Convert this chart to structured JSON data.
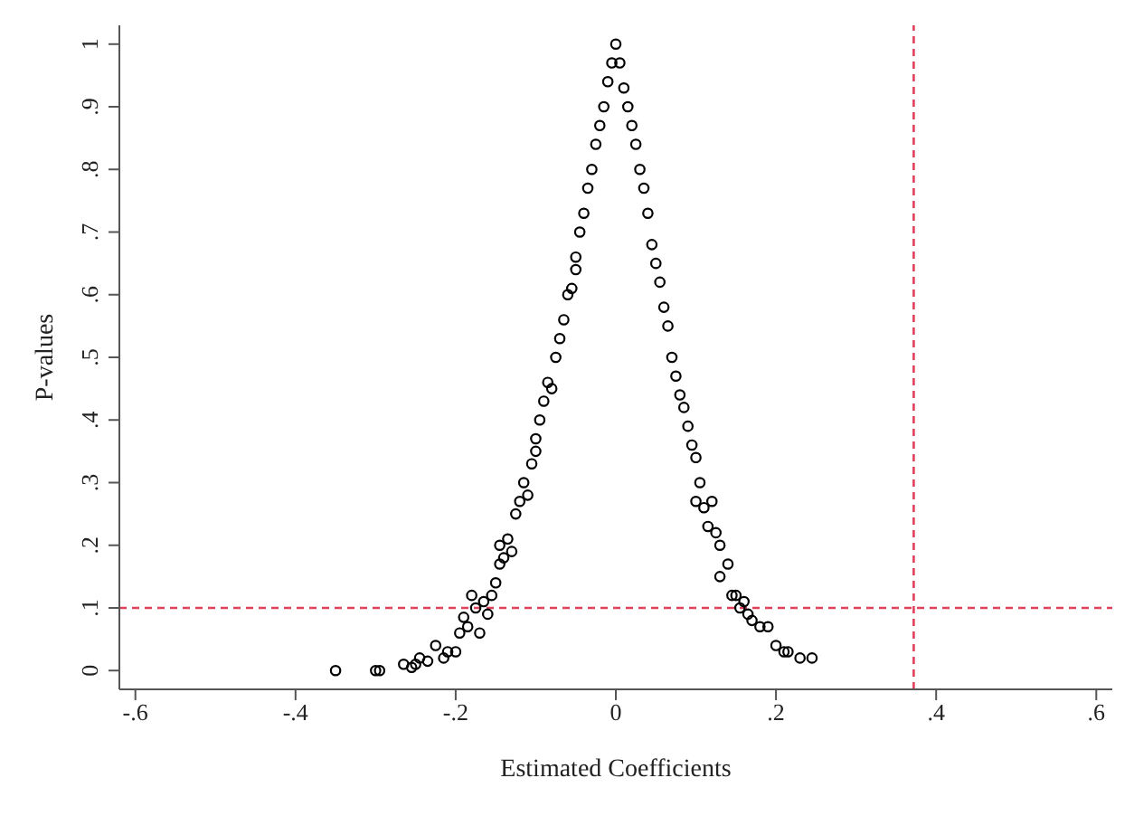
{
  "chart_data": {
    "type": "scatter",
    "xlabel": "Estimated Coefficients",
    "ylabel": "P-values",
    "marker": "circle",
    "grid": false,
    "legend": false,
    "xlim": [
      -0.62,
      0.62
    ],
    "ylim": [
      -0.03,
      1.03
    ],
    "xticks": [
      {
        "value": -0.6,
        "label": "-.6"
      },
      {
        "value": -0.4,
        "label": "-.4"
      },
      {
        "value": -0.2,
        "label": "-.2"
      },
      0,
      {
        "value": 0.2,
        "label": ".2"
      },
      {
        "value": 0.4,
        "label": ".4"
      },
      {
        "value": 0.6,
        "label": ".6"
      }
    ],
    "yticks": [
      0,
      {
        "value": 0.1,
        "label": ".1"
      },
      {
        "value": 0.2,
        "label": ".2"
      },
      {
        "value": 0.3,
        "label": ".3"
      },
      {
        "value": 0.4,
        "label": ".4"
      },
      {
        "value": 0.5,
        "label": ".5"
      },
      {
        "value": 0.6,
        "label": ".6"
      },
      {
        "value": 0.7,
        "label": ".7"
      },
      {
        "value": 0.8,
        "label": ".8"
      },
      {
        "value": 0.9,
        "label": ".9"
      },
      1
    ],
    "ref_lines": [
      {
        "axis": "x",
        "value": 0.372,
        "color": "#e0405a",
        "line_style": "dashed"
      },
      {
        "axis": "y",
        "value": 0.1,
        "color": "#e0405a",
        "line_style": "dashed"
      }
    ],
    "series": [
      {
        "color": "#000000",
        "x": [
          -0.35,
          -0.3,
          -0.295,
          -0.265,
          -0.255,
          -0.25,
          -0.245,
          -0.235,
          -0.225,
          -0.215,
          -0.21,
          -0.2,
          -0.195,
          -0.19,
          -0.185,
          -0.18,
          -0.175,
          -0.17,
          -0.165,
          -0.16,
          -0.155,
          -0.15,
          -0.145,
          -0.145,
          -0.14,
          -0.135,
          -0.13,
          -0.125,
          -0.12,
          -0.115,
          -0.11,
          -0.105,
          -0.1,
          -0.1,
          -0.095,
          -0.09,
          -0.085,
          -0.08,
          -0.075,
          -0.07,
          -0.065,
          -0.06,
          -0.055,
          -0.05,
          -0.05,
          -0.045,
          -0.04,
          -0.035,
          -0.03,
          -0.025,
          -0.02,
          -0.015,
          -0.01,
          -0.005,
          0,
          0.005,
          0.01,
          0.015,
          0.02,
          0.025,
          0.03,
          0.035,
          0.04,
          0.045,
          0.05,
          0.055,
          0.06,
          0.065,
          0.07,
          0.075,
          0.08,
          0.085,
          0.09,
          0.095,
          0.1,
          0.1,
          0.105,
          0.11,
          0.115,
          0.12,
          0.125,
          0.13,
          0.13,
          0.14,
          0.145,
          0.15,
          0.155,
          0.16,
          0.165,
          0.17,
          0.18,
          0.19,
          0.2,
          0.21,
          0.215,
          0.23,
          0.245
        ],
        "values": [
          0,
          0,
          0,
          0.01,
          0.005,
          0.01,
          0.02,
          0.015,
          0.04,
          0.02,
          0.03,
          0.03,
          0.06,
          0.085,
          0.07,
          0.12,
          0.1,
          0.06,
          0.11,
          0.09,
          0.12,
          0.14,
          0.2,
          0.17,
          0.18,
          0.21,
          0.19,
          0.25,
          0.27,
          0.3,
          0.28,
          0.33,
          0.37,
          0.35,
          0.4,
          0.43,
          0.46,
          0.45,
          0.5,
          0.53,
          0.56,
          0.6,
          0.61,
          0.64,
          0.66,
          0.7,
          0.73,
          0.77,
          0.8,
          0.84,
          0.87,
          0.9,
          0.94,
          0.97,
          1,
          0.97,
          0.93,
          0.9,
          0.87,
          0.84,
          0.8,
          0.77,
          0.73,
          0.68,
          0.65,
          0.62,
          0.58,
          0.55,
          0.5,
          0.47,
          0.44,
          0.42,
          0.39,
          0.36,
          0.34,
          0.27,
          0.3,
          0.26,
          0.23,
          0.27,
          0.22,
          0.2,
          0.15,
          0.17,
          0.12,
          0.12,
          0.1,
          0.11,
          0.09,
          0.08,
          0.07,
          0.07,
          0.04,
          0.03,
          0.03,
          0.02,
          0.02
        ]
      }
    ]
  }
}
